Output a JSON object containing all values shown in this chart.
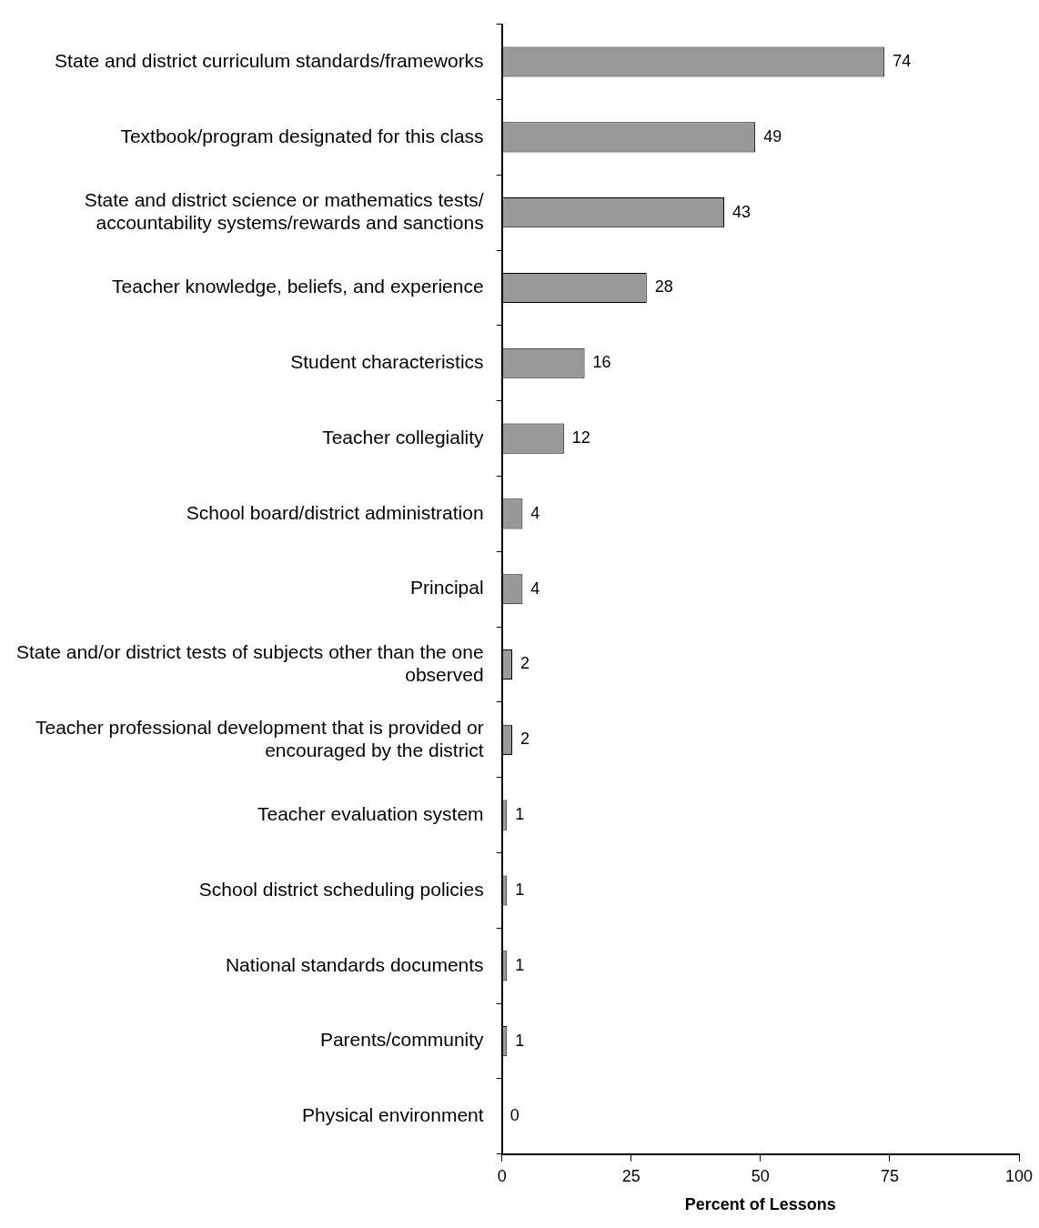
{
  "chart_data": {
    "type": "bar",
    "orientation": "horizontal",
    "xlabel": "Percent of Lessons",
    "categories": [
      "State and district curriculum standards/frameworks",
      "Textbook/program designated for this class",
      "State and district science or mathematics tests/ accountability systems/rewards and sanctions",
      "Teacher knowledge, beliefs, and experience",
      "Student characteristics",
      "Teacher collegiality",
      "School board/district administration",
      "Principal",
      "State and/or district tests of subjects other than the one observed",
      "Teacher professional development that is provided or encouraged by the district",
      "Teacher evaluation system",
      "School district scheduling policies",
      "National standards documents",
      "Parents/community",
      "Physical environment"
    ],
    "values": [
      74,
      49,
      43,
      28,
      16,
      12,
      4,
      4,
      2,
      2,
      1,
      1,
      1,
      1,
      0
    ],
    "color": "#999999",
    "xlim": [
      0,
      100
    ],
    "xticks": [
      0,
      25,
      50,
      75,
      100
    ],
    "grid": false,
    "data_labels": true
  }
}
